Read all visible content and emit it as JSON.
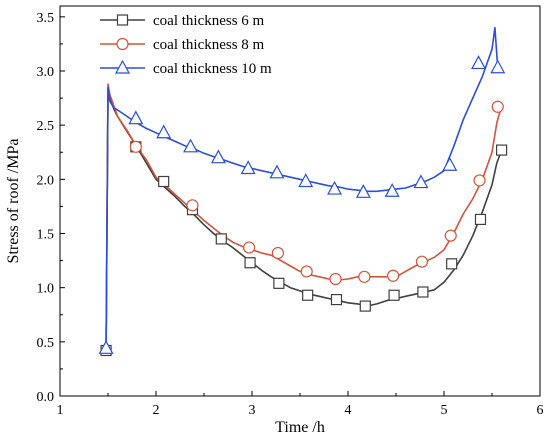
{
  "chart_data": {
    "type": "line",
    "xlabel": "Time /h",
    "ylabel": "Stress  of  roof  /MPa",
    "xlim": [
      1,
      6
    ],
    "ylim": [
      0.0,
      3.6
    ],
    "x_ticks": [
      "1",
      "2",
      "3",
      "4",
      "5",
      "6"
    ],
    "y_ticks": [
      "0.0",
      "0.5",
      "1.0",
      "1.5",
      "2.0",
      "2.5",
      "3.0",
      "3.5"
    ],
    "legend_position": "top-left",
    "series": [
      {
        "name": "coal thickness 6 m",
        "color": "#404040",
        "marker": "square",
        "x": [
          1.45,
          1.48,
          1.5,
          1.52,
          1.56,
          1.6,
          1.7,
          1.8,
          1.9,
          2.0,
          2.1,
          2.2,
          2.3,
          2.4,
          2.5,
          2.6,
          2.7,
          2.8,
          2.9,
          3.0,
          3.1,
          3.2,
          3.3,
          3.4,
          3.5,
          3.6,
          3.7,
          3.8,
          3.9,
          4.0,
          4.1,
          4.2,
          4.3,
          4.4,
          4.5,
          4.6,
          4.7,
          4.8,
          4.9,
          5.0,
          5.1,
          5.2,
          5.3,
          5.4,
          5.5,
          5.55,
          5.6
        ],
        "y": [
          0.42,
          0.45,
          2.82,
          2.75,
          2.65,
          2.58,
          2.44,
          2.3,
          2.15,
          2.0,
          1.92,
          1.84,
          1.75,
          1.67,
          1.58,
          1.5,
          1.43,
          1.37,
          1.3,
          1.23,
          1.16,
          1.1,
          1.05,
          1.0,
          0.97,
          0.94,
          0.92,
          0.9,
          0.88,
          0.86,
          0.85,
          0.83,
          0.85,
          0.88,
          0.9,
          0.92,
          0.94,
          0.96,
          0.98,
          1.05,
          1.16,
          1.3,
          1.48,
          1.7,
          1.95,
          2.15,
          2.27
        ],
        "marker_x": [
          1.48,
          1.79,
          2.08,
          2.38,
          2.68,
          2.98,
          3.28,
          3.58,
          3.88,
          4.18,
          4.48,
          4.78,
          5.08,
          5.38,
          5.6
        ],
        "marker_y": [
          0.42,
          2.3,
          1.98,
          1.72,
          1.45,
          1.23,
          1.04,
          0.93,
          0.89,
          0.83,
          0.93,
          0.96,
          1.22,
          1.63,
          2.27
        ]
      },
      {
        "name": "coal thickness 8 m",
        "color": "#d0543c",
        "marker": "circle",
        "x": [
          1.45,
          1.48,
          1.5,
          1.52,
          1.56,
          1.6,
          1.7,
          1.8,
          1.9,
          2.0,
          2.1,
          2.2,
          2.3,
          2.4,
          2.5,
          2.6,
          2.7,
          2.8,
          2.9,
          3.0,
          3.1,
          3.2,
          3.3,
          3.4,
          3.5,
          3.6,
          3.7,
          3.8,
          3.9,
          4.0,
          4.1,
          4.2,
          4.3,
          4.4,
          4.5,
          4.6,
          4.7,
          4.8,
          4.9,
          5.0,
          5.1,
          5.2,
          5.3,
          5.4,
          5.5,
          5.55,
          5.6
        ],
        "y": [
          0.42,
          0.45,
          2.88,
          2.78,
          2.68,
          2.58,
          2.45,
          2.3,
          2.18,
          2.02,
          1.94,
          1.86,
          1.78,
          1.7,
          1.62,
          1.55,
          1.48,
          1.42,
          1.38,
          1.35,
          1.32,
          1.3,
          1.25,
          1.2,
          1.15,
          1.12,
          1.1,
          1.08,
          1.07,
          1.08,
          1.1,
          1.1,
          1.1,
          1.1,
          1.1,
          1.15,
          1.2,
          1.24,
          1.28,
          1.35,
          1.5,
          1.68,
          1.82,
          2.0,
          2.25,
          2.52,
          2.68
        ],
        "marker_x": [
          1.79,
          2.38,
          2.97,
          3.27,
          3.57,
          3.87,
          4.17,
          4.47,
          4.77,
          5.07,
          5.37,
          5.56
        ],
        "marker_y": [
          2.3,
          1.76,
          1.37,
          1.32,
          1.15,
          1.08,
          1.1,
          1.11,
          1.24,
          1.48,
          1.99,
          2.67
        ]
      },
      {
        "name": "coal thickness 10 m",
        "color": "#2a4fd6",
        "marker": "triangle",
        "x": [
          1.45,
          1.48,
          1.5,
          1.52,
          1.56,
          1.6,
          1.7,
          1.8,
          1.9,
          2.0,
          2.1,
          2.2,
          2.3,
          2.4,
          2.5,
          2.6,
          2.7,
          2.8,
          2.9,
          3.0,
          3.1,
          3.2,
          3.3,
          3.4,
          3.5,
          3.6,
          3.7,
          3.8,
          3.9,
          4.0,
          4.1,
          4.2,
          4.3,
          4.4,
          4.5,
          4.6,
          4.7,
          4.8,
          4.9,
          5.0,
          5.1,
          5.2,
          5.3,
          5.4,
          5.5,
          5.53,
          5.56
        ],
        "y": [
          0.42,
          0.45,
          2.85,
          2.72,
          2.66,
          2.64,
          2.58,
          2.52,
          2.47,
          2.43,
          2.39,
          2.35,
          2.31,
          2.28,
          2.24,
          2.21,
          2.18,
          2.15,
          2.12,
          2.1,
          2.08,
          2.06,
          2.04,
          2.02,
          2.0,
          1.98,
          1.96,
          1.94,
          1.93,
          1.91,
          1.9,
          1.89,
          1.89,
          1.9,
          1.91,
          1.92,
          1.95,
          1.98,
          2.02,
          2.08,
          2.3,
          2.55,
          2.75,
          2.95,
          3.2,
          3.4,
          3.02
        ],
        "marker_x": [
          1.48,
          1.79,
          2.08,
          2.36,
          2.65,
          2.96,
          3.26,
          3.56,
          3.86,
          4.16,
          4.46,
          4.76,
          5.06,
          5.36,
          5.56
        ],
        "marker_y": [
          0.44,
          2.56,
          2.43,
          2.3,
          2.2,
          2.1,
          2.06,
          1.98,
          1.91,
          1.88,
          1.89,
          1.97,
          2.13,
          3.07,
          3.03
        ]
      }
    ]
  }
}
